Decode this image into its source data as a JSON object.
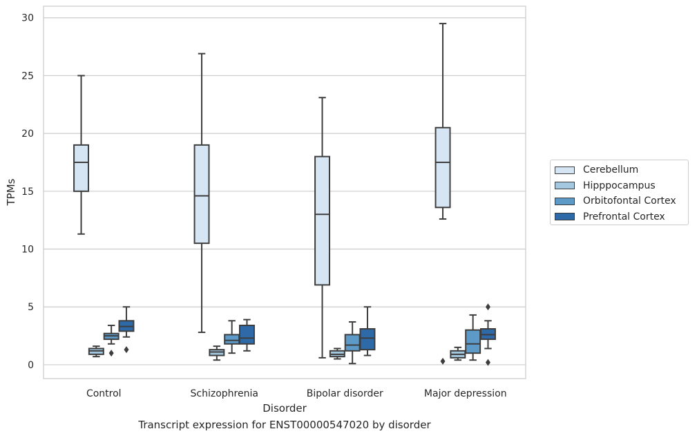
{
  "chart_data": {
    "type": "box",
    "xlabel": "Disorder",
    "ylabel": "TPMs",
    "caption": "Transcript expression for ENST00000547020 by disorder",
    "ylim": [
      -1.2,
      31
    ],
    "yticks": [
      0,
      5,
      10,
      15,
      20,
      25,
      30
    ],
    "grid": "horizontal",
    "legend_position": "right",
    "categories": [
      "Control",
      "Schizophrenia",
      "Bipolar disorder",
      "Major depression"
    ],
    "series": [
      {
        "name": "Cerebellum",
        "color": "#d6e5f3",
        "boxes": [
          {
            "min": 11.3,
            "q1": 15.0,
            "median": 17.5,
            "q3": 19.0,
            "max": 25.0,
            "outliers": []
          },
          {
            "min": 2.8,
            "q1": 10.5,
            "median": 14.6,
            "q3": 19.0,
            "max": 26.9,
            "outliers": []
          },
          {
            "min": 0.6,
            "q1": 6.9,
            "median": 13.0,
            "q3": 18.0,
            "max": 23.1,
            "outliers": []
          },
          {
            "min": 12.6,
            "q1": 13.6,
            "median": 17.5,
            "q3": 20.5,
            "max": 29.5,
            "outliers": [
              0.3
            ]
          }
        ]
      },
      {
        "name": "Hipppocampus",
        "color": "#a3c8e0",
        "boxes": [
          {
            "min": 0.7,
            "q1": 0.9,
            "median": 1.2,
            "q3": 1.4,
            "max": 1.6,
            "outliers": []
          },
          {
            "min": 0.4,
            "q1": 0.8,
            "median": 1.1,
            "q3": 1.3,
            "max": 1.6,
            "outliers": []
          },
          {
            "min": 0.5,
            "q1": 0.7,
            "median": 0.9,
            "q3": 1.2,
            "max": 1.4,
            "outliers": []
          },
          {
            "min": 0.4,
            "q1": 0.6,
            "median": 0.9,
            "q3": 1.2,
            "max": 1.5,
            "outliers": []
          }
        ]
      },
      {
        "name": "Orbitofontal Cortex",
        "color": "#5d9ac8",
        "boxes": [
          {
            "min": 1.8,
            "q1": 2.2,
            "median": 2.5,
            "q3": 2.7,
            "max": 3.4,
            "outliers": [
              1.0
            ]
          },
          {
            "min": 1.0,
            "q1": 1.8,
            "median": 2.1,
            "q3": 2.6,
            "max": 3.8,
            "outliers": []
          },
          {
            "min": 0.1,
            "q1": 1.2,
            "median": 1.7,
            "q3": 2.6,
            "max": 3.7,
            "outliers": []
          },
          {
            "min": 0.4,
            "q1": 1.0,
            "median": 1.8,
            "q3": 3.0,
            "max": 4.3,
            "outliers": []
          }
        ]
      },
      {
        "name": "Prefrontal Cortex",
        "color": "#2e6aa8",
        "boxes": [
          {
            "min": 2.4,
            "q1": 2.9,
            "median": 3.3,
            "q3": 3.8,
            "max": 5.0,
            "outliers": [
              1.3
            ]
          },
          {
            "min": 1.2,
            "q1": 1.8,
            "median": 2.3,
            "q3": 3.4,
            "max": 3.9,
            "outliers": []
          },
          {
            "min": 0.8,
            "q1": 1.3,
            "median": 2.3,
            "q3": 3.1,
            "max": 5.0,
            "outliers": []
          },
          {
            "min": 1.4,
            "q1": 2.2,
            "median": 2.6,
            "q3": 3.1,
            "max": 3.8,
            "outliers": [
              5.0,
              0.2
            ]
          }
        ]
      }
    ]
  }
}
